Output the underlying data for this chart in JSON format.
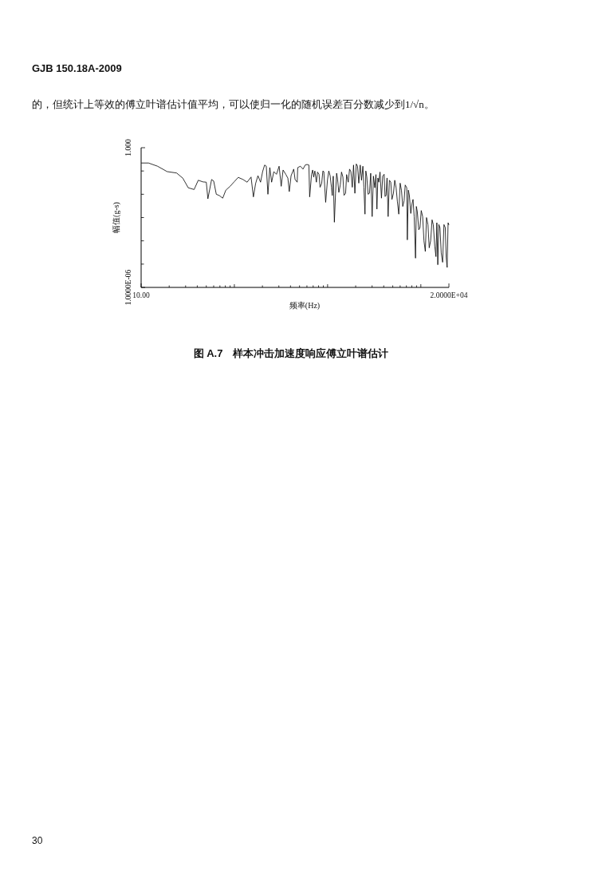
{
  "chart_data": {
    "type": "line",
    "title": "图 A.7　样本冲击加速度响应傅立叶谱估计",
    "xlabel": "频率(Hz)",
    "ylabel": "幅值(g-s)",
    "annotations": [
      "GJB 150.18A-2009",
      "的，但统计上等效的傅立叶谱估计值平均，可以使归一化的随机误差百分数减少到1/√n。",
      "30"
    ],
    "log": "xy",
    "xlim": [
      10,
      20000
    ],
    "ylim": [
      1e-06,
      1
    ],
    "xticks": [
      {
        "value": 10,
        "label": "10.00"
      },
      {
        "value": 20,
        "label": null
      },
      {
        "value": 30,
        "label": null
      },
      {
        "value": 40,
        "label": null
      },
      {
        "value": 50,
        "label": null
      },
      {
        "value": 60,
        "label": null
      },
      {
        "value": 70,
        "label": null
      },
      {
        "value": 80,
        "label": null
      },
      {
        "value": 90,
        "label": null
      },
      {
        "value": 100,
        "label": null
      },
      {
        "value": 200,
        "label": null
      },
      {
        "value": 300,
        "label": null
      },
      {
        "value": 400,
        "label": null
      },
      {
        "value": 500,
        "label": null
      },
      {
        "value": 600,
        "label": null
      },
      {
        "value": 700,
        "label": null
      },
      {
        "value": 800,
        "label": null
      },
      {
        "value": 900,
        "label": null
      },
      {
        "value": 1000,
        "label": null
      },
      {
        "value": 2000,
        "label": null
      },
      {
        "value": 3000,
        "label": null
      },
      {
        "value": 4000,
        "label": null
      },
      {
        "value": 5000,
        "label": null
      },
      {
        "value": 6000,
        "label": null
      },
      {
        "value": 7000,
        "label": null
      },
      {
        "value": 8000,
        "label": null
      },
      {
        "value": 9000,
        "label": null
      },
      {
        "value": 10000,
        "label": null
      },
      {
        "value": 20000,
        "label": "2.0000E+04"
      }
    ],
    "yticks": [
      {
        "value": 1e-06,
        "label": "1.0000E-06"
      },
      {
        "value": 1e-05,
        "label": null
      },
      {
        "value": 0.0001,
        "label": null
      },
      {
        "value": 0.001,
        "label": null
      },
      {
        "value": 0.01,
        "label": null
      },
      {
        "value": 0.1,
        "label": null
      },
      {
        "value": 1,
        "label": "1.000"
      }
    ],
    "x": [
      10.1,
      12,
      15,
      19,
      24,
      28,
      32,
      37,
      41,
      46,
      50,
      52,
      57,
      60,
      64,
      69,
      75,
      81,
      90,
      100,
      110,
      124,
      137,
      151,
      160,
      169,
      179,
      191,
      201,
      211,
      220,
      229,
      240,
      251,
      265,
      283,
      302,
      318,
      333,
      356,
      375,
      388,
      406,
      433,
      448,
      472,
      478,
      511,
      545,
      575,
      601,
      630,
      642,
      673,
      691,
      709,
      730,
      758,
      780,
      809,
      830,
      864,
      890,
      911,
      953,
      998,
      1030,
      1064,
      1100,
      1122,
      1150,
      1182,
      1216,
      1250,
      1280,
      1320,
      1368,
      1410,
      1459,
      1500,
      1559,
      1600,
      1665,
      1720,
      1778,
      1840,
      1898,
      1962,
      2030,
      2096,
      2160,
      2238,
      2310,
      2390,
      2450,
      2518,
      2570,
      2634,
      2720,
      2813,
      2900,
      3005,
      3100,
      3209,
      3300,
      3381,
      3460,
      3540,
      3650,
      3781,
      3900,
      4040,
      4130,
      4229,
      4340,
      4458,
      4600,
      4760,
      4900,
      5083,
      5250,
      5430,
      5600,
      5799,
      6000,
      6194,
      6400,
      6612,
      6800,
      7063,
      7163,
      7350,
      7537,
      7800,
      8054,
      8250,
      8480,
      8770,
      8950,
      9165,
      9500,
      9795,
      10100,
      10460,
      10800,
      11170,
      11500,
      11930,
      12300,
      12740,
      13200,
      13610,
      14100,
      14530,
      14850,
      15200,
      15600,
      16030,
      16550,
      17130,
      17700,
      18290,
      18700,
      19150,
      19600,
      19950
    ],
    "series": [
      {
        "color": "#000000",
        "values": [
          0.22,
          0.22,
          0.16,
          0.094,
          0.082,
          0.049,
          0.019,
          0.016,
          0.04,
          0.034,
          0.033,
          0.0064,
          0.043,
          0.037,
          0.01,
          0.0088,
          0.0068,
          0.015,
          0.022,
          0.035,
          0.053,
          0.043,
          0.033,
          0.055,
          0.0077,
          0.029,
          0.063,
          0.033,
          0.094,
          0.18,
          0.16,
          0.01,
          0.14,
          0.033,
          0.094,
          0.072,
          0.16,
          0.022,
          0.11,
          0.072,
          0.049,
          0.013,
          0.063,
          0.12,
          0.043,
          0.033,
          0.14,
          0.16,
          0.12,
          0.18,
          0.19,
          0.18,
          0.0077,
          0.072,
          0.11,
          0.055,
          0.1,
          0.033,
          0.09,
          0.072,
          0.02,
          0.029,
          0.1,
          0.094,
          0.0045,
          0.043,
          0.1,
          0.063,
          0.02,
          0.0088,
          0.06,
          0.00063,
          0.011,
          0.08,
          0.043,
          0.012,
          0.025,
          0.09,
          0.055,
          0.009,
          0.011,
          0.07,
          0.033,
          0.12,
          0.094,
          0.02,
          0.18,
          0.011,
          0.2,
          0.16,
          0.03,
          0.18,
          0.04,
          0.16,
          0.02,
          0.0014,
          0.1,
          0.055,
          0.01,
          0.011,
          0.08,
          0.0011,
          0.06,
          0.019,
          0.07,
          0.0023,
          0.05,
          0.033,
          0.09,
          0.0068,
          0.06,
          0.072,
          0.008,
          0.0088,
          0.05,
          0.0011,
          0.04,
          0.033,
          0.006,
          0.011,
          0.04,
          0.019,
          0.005,
          0.0014,
          0.03,
          0.015,
          0.003,
          0.0052,
          0.025,
          0.019,
          0.00011,
          0.015,
          0.0088,
          0.0015,
          0.004,
          0.006,
          0.0011,
          1.8e-05,
          0.003,
          0.0018,
          0.0003,
          0.00037,
          0.002,
          0.0011,
          0.0001,
          3.5e-05,
          0.001,
          0.00049,
          5e-05,
          0.0001,
          0.0008,
          0.00049,
          6e-05,
          2.1e-05,
          0.0006,
          9.4e-06,
          0.0005,
          0.00037,
          3e-05,
          1.2e-05,
          0.0005,
          0.00037,
          2e-05,
          7.2e-06,
          0.0006,
          0.00049
        ]
      }
    ]
  }
}
